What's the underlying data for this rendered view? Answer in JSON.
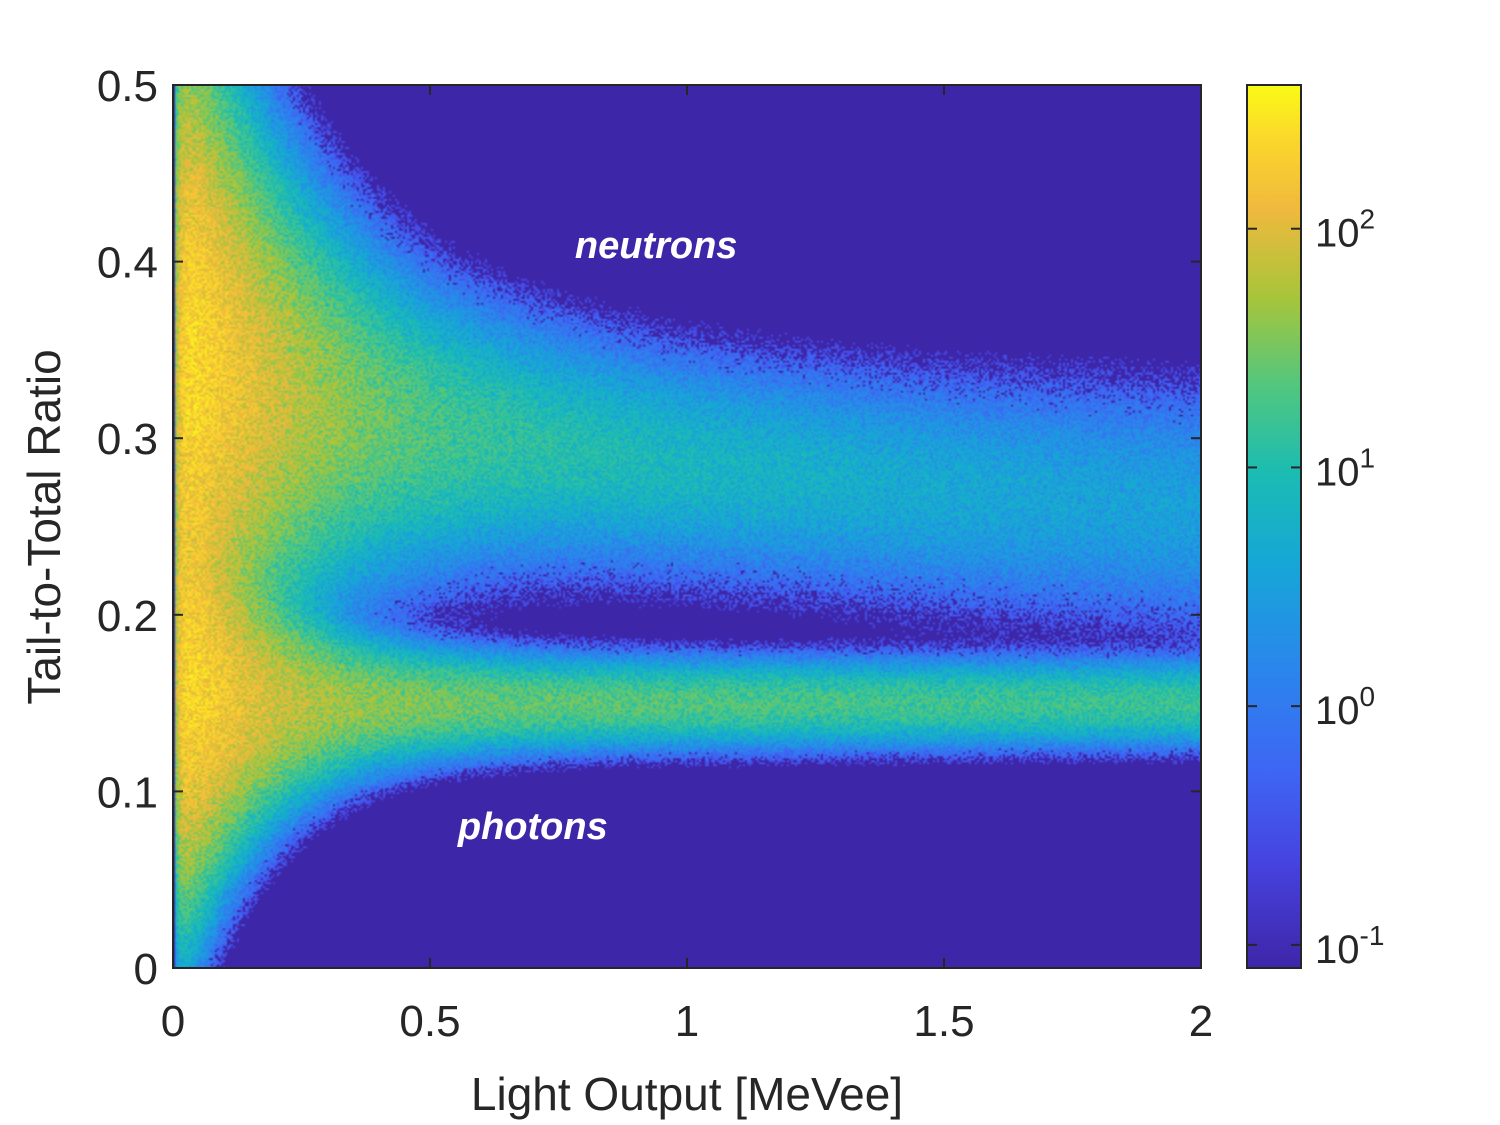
{
  "chart_data": {
    "type": "heatmap",
    "xlabel": "Light Output [MeVee]",
    "ylabel": "Tail-to-Total Ratio",
    "xlim": [
      0,
      2
    ],
    "ylim": [
      0,
      0.5
    ],
    "x_ticks": [
      0,
      0.5,
      1,
      1.5,
      2
    ],
    "x_tick_labels": [
      "0",
      "0.5",
      "1",
      "1.5",
      "2"
    ],
    "y_ticks": [
      0,
      0.1,
      0.2,
      0.3,
      0.4,
      0.5
    ],
    "y_tick_labels": [
      "0",
      "0.1",
      "0.2",
      "0.3",
      "0.4",
      "0.5"
    ],
    "grid": false,
    "colormap": "parula",
    "colorbar": {
      "scale": "log",
      "range": [
        0.08,
        400
      ],
      "ticks": [
        0.1,
        1,
        10,
        100
      ],
      "tick_labels": [
        {
          "base": "10",
          "exp": "-1"
        },
        {
          "base": "10",
          "exp": "0"
        },
        {
          "base": "10",
          "exp": "1"
        },
        {
          "base": "10",
          "exp": "2"
        }
      ]
    },
    "bands": [
      {
        "region": "neutrons",
        "x": [
          0.05,
          0.2,
          0.5,
          1.0,
          1.5,
          2.0
        ],
        "center_y": [
          0.34,
          0.325,
          0.305,
          0.285,
          0.27,
          0.26
        ]
      },
      {
        "region": "photons",
        "x": [
          0.05,
          0.2,
          0.5,
          1.0,
          1.5,
          2.0
        ],
        "center_y": [
          0.15,
          0.15,
          0.15,
          0.15,
          0.15,
          0.15
        ]
      }
    ],
    "annotations": [
      {
        "text": "neutrons",
        "x": 0.94,
        "y": 0.402
      },
      {
        "text": "photons",
        "x": 0.7,
        "y": 0.073
      }
    ]
  }
}
